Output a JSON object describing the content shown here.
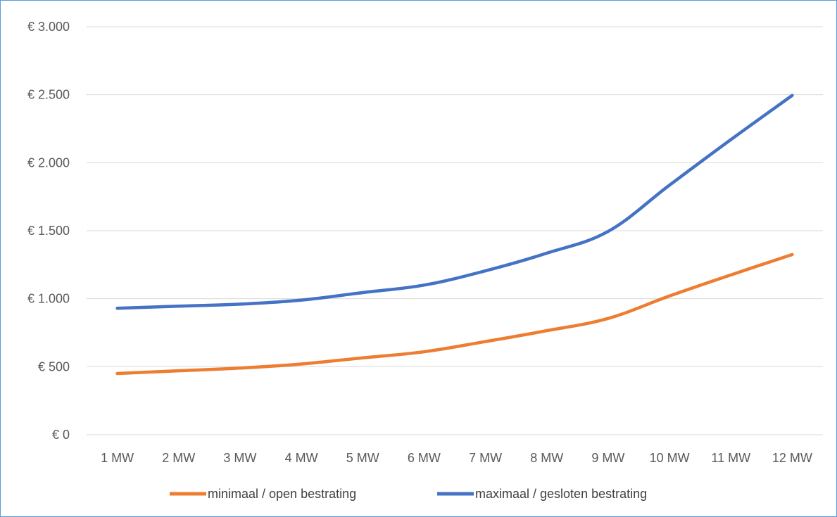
{
  "chart_data": {
    "type": "line",
    "title": "",
    "xlabel": "",
    "ylabel": "",
    "categories": [
      "1 MW",
      "2 MW",
      "3 MW",
      "4 MW",
      "5 MW",
      "6 MW",
      "7 MW",
      "8 MW",
      "9 MW",
      "10 MW",
      "11 MW",
      "12 MW"
    ],
    "ylim": [
      0,
      3000
    ],
    "yticks": [
      0,
      500,
      1000,
      1500,
      2000,
      2500,
      3000
    ],
    "ytick_labels": [
      "€ 0",
      "€ 500",
      "€ 1.000",
      "€ 1.500",
      "€ 2.000",
      "€ 2.500",
      "€ 3.000"
    ],
    "grid": "horizontal",
    "legend_position": "bottom",
    "series": [
      {
        "name": "minimaal / open bestrating",
        "color": "#ed7d31",
        "values": [
          450,
          470,
          490,
          520,
          565,
          610,
          685,
          765,
          855,
          1020,
          1175,
          1325
        ]
      },
      {
        "name": "maximaal / gesloten bestrating",
        "color": "#4472c4",
        "values": [
          930,
          945,
          960,
          990,
          1045,
          1100,
          1205,
          1335,
          1495,
          1835,
          2170,
          2495
        ]
      }
    ]
  }
}
